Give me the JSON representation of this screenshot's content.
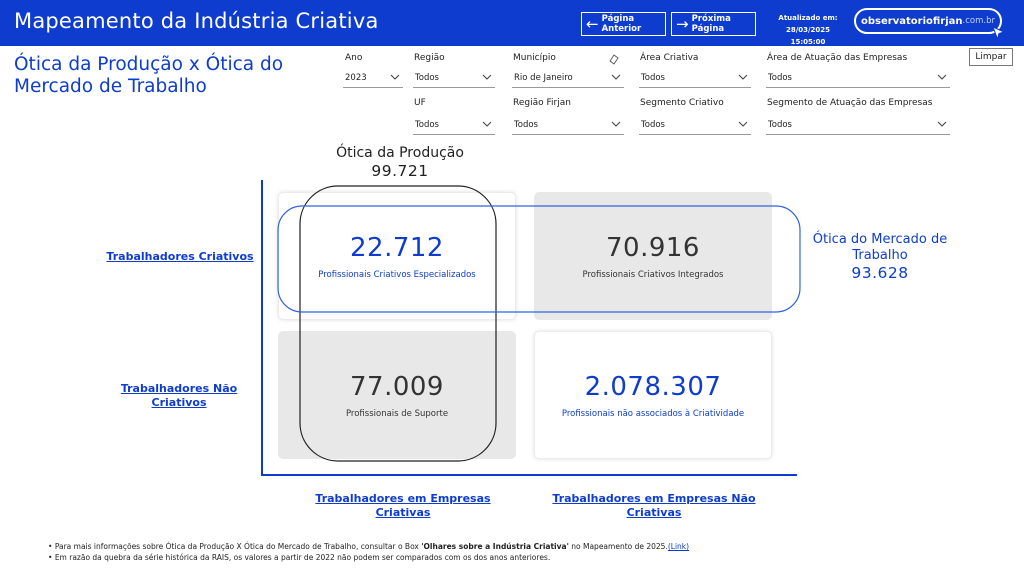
{
  "header": {
    "title": "Mapeamento da Indústria Criativa",
    "prev_label": "Página Anterior",
    "next_label": "Próxima Página",
    "updated_label": "Atualizado em:",
    "updated_value": "28/03/2025 15:05:00",
    "logo_main": "observatoriofirjan",
    "logo_suffix": ".com.br",
    "bg_color": "#0d3ccf"
  },
  "page": {
    "title": "Ótica da Produção x Ótica do Mercado de Trabalho"
  },
  "filters": {
    "ano": {
      "label": "Ano",
      "value": "2023"
    },
    "regiao": {
      "label": "Região",
      "value": "Todos"
    },
    "municipio": {
      "label": "Município",
      "value": "Rio de Janeiro"
    },
    "area_criativa": {
      "label": "Área Criativa",
      "value": "Todos"
    },
    "area_atuacao": {
      "label": "Área de Atuação das Empresas",
      "value": "Todos"
    },
    "uf": {
      "label": "UF",
      "value": "Todos"
    },
    "regiao_firjan": {
      "label": "Região Firjan",
      "value": "Todos"
    },
    "segmento_criativo": {
      "label": "Segmento Criativo",
      "value": "Todos"
    },
    "segmento_atuacao": {
      "label": "Segmento de Atuação das Empresas",
      "value": "Todos"
    },
    "clear_label": "Limpar"
  },
  "matrix": {
    "producao": {
      "title": "Ótica da Produção",
      "value": "99.721"
    },
    "mercado": {
      "title": "Ótica do Mercado de Trabalho",
      "value": "93.628"
    },
    "rows": [
      "Trabalhadores Criativos",
      "Trabalhadores Não Criativos"
    ],
    "cols": [
      "Trabalhadores em Empresas Criativas",
      "Trabalhadores em Empresas Não Criativas"
    ],
    "cards": [
      {
        "value": "22.712",
        "label": "Profissionais Criativos Especializados"
      },
      {
        "value": "70.916",
        "label": "Profissionais Criativos Integrados"
      },
      {
        "value": "77.009",
        "label": "Profissionais de Suporte"
      },
      {
        "value": "2.078.307",
        "label": "Profissionais não associados à Criatividade"
      }
    ]
  },
  "notes": {
    "line1_a": "Para mais informações sobre Ótica da Produção X Ótica do Mercado de Trabalho, consultar o Box ",
    "line1_bold": "'Olhares sobre a Indústria Criativa'",
    "line1_b": " no Mapeamento de 2025.",
    "line1_link": "(Link)",
    "line2": "Em razão da quebra da série histórica da RAIS, os valores a partir de 2022 não podem ser comparados com os dos anos anteriores."
  }
}
